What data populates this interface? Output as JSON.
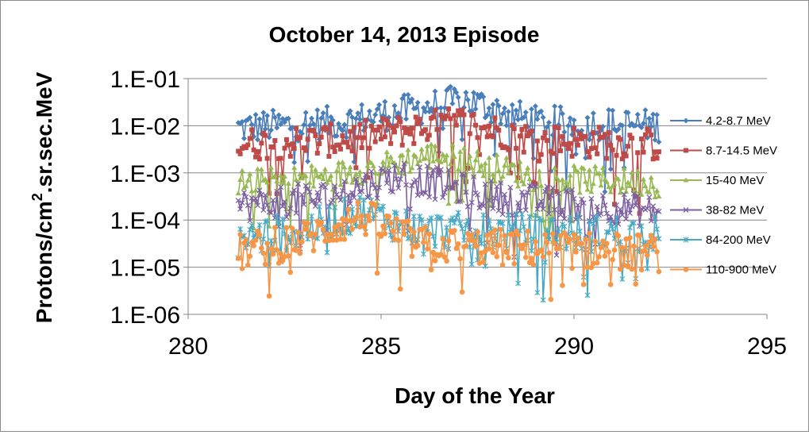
{
  "chart_data": {
    "type": "line",
    "title": "October 14, 2013 Episode",
    "xlabel": "Day of the Year",
    "ylabel": "Protons/cm2.sr.sec.MeV",
    "ylabel_parts": [
      "Protons/cm",
      "2",
      ".sr.sec.MeV"
    ],
    "xlim": [
      280,
      295
    ],
    "ylim": [
      1e-06,
      0.1
    ],
    "yscale": "log",
    "xticks": [
      "280",
      "285",
      "290",
      "295"
    ],
    "yticks": [
      "1.E-06",
      "1.E-05",
      "1.E-04",
      "1.E-03",
      "1.E-02",
      "1.E-01"
    ],
    "grid": "horizontal",
    "legend_position": "right",
    "x_start": 281.3,
    "x_end": 292.2,
    "x_step": 0.05,
    "series": [
      {
        "name": "4.2-8.7 MeV",
        "color": "#4a7ebb",
        "marker": "diamond",
        "profile": [
          [
            281.3,
            0.009
          ],
          [
            284.0,
            0.012
          ],
          [
            287.2,
            0.035
          ],
          [
            289.0,
            0.012
          ],
          [
            292.2,
            0.01
          ]
        ],
        "spread_log": 0.35
      },
      {
        "name": "8.7-14.5 MeV",
        "color": "#be4b48",
        "marker": "square",
        "profile": [
          [
            281.3,
            0.004
          ],
          [
            284.0,
            0.005
          ],
          [
            287.0,
            0.012
          ],
          [
            289.0,
            0.005
          ],
          [
            292.2,
            0.004
          ]
        ],
        "spread_log": 0.35
      },
      {
        "name": "15-40 MeV",
        "color": "#98b954",
        "marker": "triangle",
        "profile": [
          [
            281.3,
            0.0006
          ],
          [
            283.5,
            0.0008
          ],
          [
            286.5,
            0.0025
          ],
          [
            289.0,
            0.0008
          ],
          [
            292.2,
            0.0006
          ]
        ],
        "spread_log": 0.3
      },
      {
        "name": "38-82 MeV",
        "color": "#7d60a0",
        "marker": "x",
        "profile": [
          [
            281.3,
            0.0002
          ],
          [
            283.5,
            0.0003
          ],
          [
            285.5,
            0.0009
          ],
          [
            288.0,
            0.0003
          ],
          [
            292.2,
            0.00015
          ]
        ],
        "spread_log": 0.35
      },
      {
        "name": "84-200 MeV",
        "color": "#46aac5",
        "marker": "star",
        "profile": [
          [
            281.3,
            4e-05
          ],
          [
            283.0,
            6e-05
          ],
          [
            284.5,
            0.00015
          ],
          [
            286.0,
            6e-05
          ],
          [
            292.2,
            5e-05
          ]
        ],
        "spread_log": 0.4
      },
      {
        "name": "110-900 MeV",
        "color": "#f79646",
        "marker": "circle",
        "profile": [
          [
            281.3,
            2e-05
          ],
          [
            283.0,
            4e-05
          ],
          [
            284.5,
            0.00012
          ],
          [
            286.0,
            3e-05
          ],
          [
            292.2,
            2e-05
          ]
        ],
        "spread_log": 0.4
      }
    ]
  }
}
